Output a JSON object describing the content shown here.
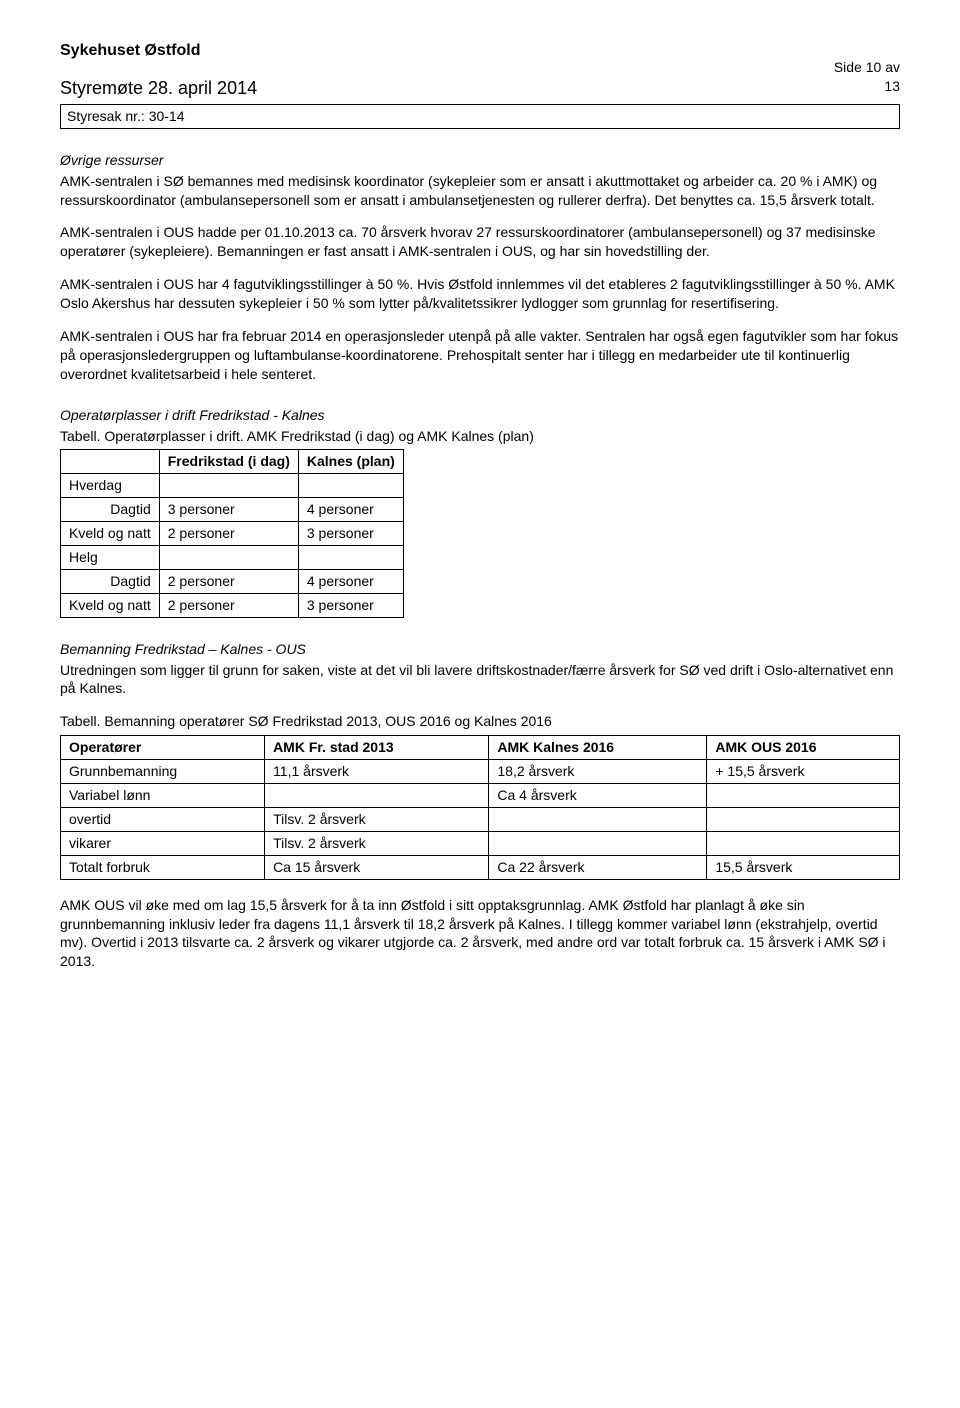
{
  "header": {
    "org_name": "Sykehuset Østfold",
    "meeting_line": "Styremøte 28. april 2014",
    "page_info": "Side 10 av\n13",
    "case_label": "Styresak nr.: 30-14"
  },
  "sections": {
    "ovrige_heading": "Øvrige ressurser",
    "ovrige_para": "AMK-sentralen i SØ bemannes med medisinsk koordinator (sykepleier som er ansatt i akuttmottaket og arbeider ca. 20 % i AMK) og ressurskoordinator (ambulansepersonell som er ansatt i ambulansetjenesten og rullerer derfra). Det benyttes ca. 15,5 årsverk totalt.",
    "ous_para1": "AMK-sentralen i OUS hadde per 01.10.2013 ca. 70 årsverk hvorav 27 ressurskoordinatorer (ambulansepersonell) og 37 medisinske operatører (sykepleiere). Bemanningen er fast ansatt i AMK-sentralen i OUS, og har sin hovedstilling der.",
    "ous_para2": "AMK-sentralen i OUS har 4 fagutviklingsstillinger à 50 %. Hvis Østfold innlemmes vil det etableres 2 fagutviklingsstillinger à 50 %. AMK Oslo Akershus har dessuten sykepleier i 50 % som lytter på/kvalitetssikrer lydlogger som grunnlag for resertifisering.",
    "ous_para3": "AMK-sentralen i OUS har fra februar 2014 en operasjonsleder utenpå på alle vakter. Sentralen har også egen fagutvikler som har fokus på operasjonsledergruppen og luftambulanse-koordinatorene. Prehospitalt senter har i tillegg en medarbeider ute til kontinuerlig overordnet kvalitetsarbeid i hele senteret.",
    "operatorplasser_heading": "Operatørplasser i drift Fredrikstad - Kalnes",
    "table1_caption": "Tabell. Operatørplasser i drift. AMK Fredrikstad (i dag) og AMK Kalnes (plan)",
    "bemanning_heading": "Bemanning Fredrikstad – Kalnes - OUS",
    "bemanning_para": "Utredningen som ligger til grunn for saken, viste at det vil bli lavere driftskostnader/færre årsverk for SØ ved drift i Oslo-alternativet enn på Kalnes.",
    "table2_caption": "Tabell. Bemanning operatører SØ Fredrikstad 2013, OUS 2016 og Kalnes 2016",
    "footer_para": "AMK OUS vil øke med om lag 15,5 årsverk for å ta inn Østfold i sitt opptaksgrunnlag. AMK Østfold har planlagt å øke sin grunnbemanning inklusiv leder fra dagens 11,1 årsverk til 18,2 årsverk på Kalnes. I tillegg kommer variabel lønn (ekstrahjelp, overtid mv). Overtid i 2013 tilsvarte ca. 2 årsverk og vikarer utgjorde ca. 2 årsverk, med andre ord var totalt forbruk ca. 15 årsverk i AMK SØ i 2013."
  },
  "table1": {
    "col_blank": "",
    "col1": "Fredrikstad (i dag)",
    "col2": "Kalnes (plan)",
    "rows": [
      {
        "label": "Hverdag",
        "c1": "",
        "c2": ""
      },
      {
        "label": "Dagtid",
        "c1": "3 personer",
        "c2": "4 personer"
      },
      {
        "label": "Kveld og natt",
        "c1": "2 personer",
        "c2": "3 personer"
      },
      {
        "label": "Helg",
        "c1": "",
        "c2": ""
      },
      {
        "label": "Dagtid",
        "c1": "2 personer",
        "c2": "4 personer"
      },
      {
        "label": "Kveld og natt",
        "c1": "2 personer",
        "c2": "3 personer"
      }
    ]
  },
  "table2": {
    "h0": "Operatører",
    "h1": "AMK Fr. stad 2013",
    "h2": "AMK Kalnes 2016",
    "h3": "AMK OUS 2016",
    "r1": {
      "c0": "Grunnbemanning",
      "c1": "11,1 årsverk",
      "c2": "18,2 årsverk",
      "c3": "+ 15,5 årsverk"
    },
    "r2": {
      "c0": "Variabel lønn",
      "c1": "",
      "c2": "Ca 4 årsverk",
      "c3": ""
    },
    "r3": {
      "c0": "overtid",
      "c1": "Tilsv. 2 årsverk",
      "c2": "",
      "c3": ""
    },
    "r4": {
      "c0": "vikarer",
      "c1": "Tilsv. 2 årsverk",
      "c2": "",
      "c3": ""
    },
    "r5": {
      "c0": "Totalt forbruk",
      "c1": "Ca 15 årsverk",
      "c2": "Ca 22 årsverk",
      "c3": "15,5 årsverk"
    }
  }
}
